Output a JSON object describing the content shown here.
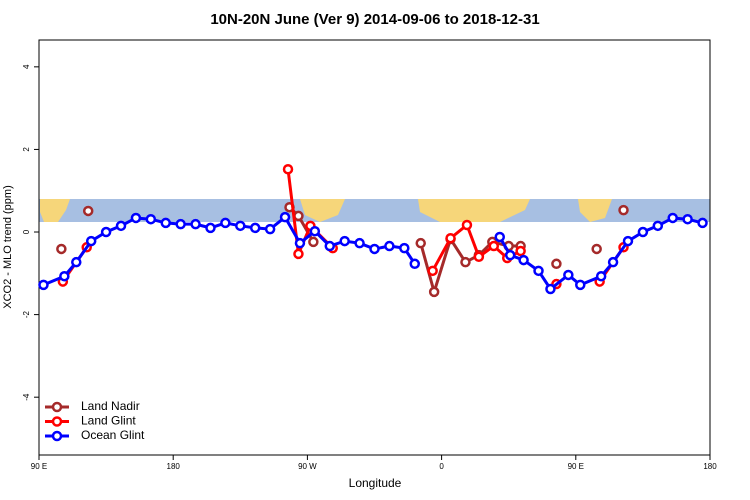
{
  "chart_data": {
    "type": "line",
    "title": "10N-20N June (Ver 9)   2014-09-06 to 2018-12-31",
    "xlabel": "Longitude",
    "ylabel": "XCO2 - MLO trend (ppm)",
    "xlim": [
      90,
      540
    ],
    "ylim": [
      -5.4,
      4.65
    ],
    "xticks": [
      {
        "value": 90,
        "label": "90 E"
      },
      180,
      {
        "value": 270,
        "label": "90 W"
      },
      {
        "value": 360,
        "label": "0"
      },
      {
        "value": 450,
        "label": "90 E"
      },
      {
        "value": 540,
        "label": "180"
      }
    ],
    "yticks": [
      -4,
      -2,
      0,
      2,
      4
    ],
    "legend": "bottom-left",
    "series": [
      {
        "name": "Land Nadir",
        "color": "#a52a2a",
        "x": [
          105,
          114,
          123,
          190,
          258,
          264,
          274,
          310,
          346,
          355,
          366,
          376,
          385,
          394,
          405,
          413,
          425,
          437,
          450,
          464,
          473,
          482
        ],
        "values": [
          -0.41,
          null,
          0.51,
          null,
          0.6,
          0.39,
          -0.24,
          null,
          -0.27,
          -1.45,
          -0.17,
          -0.73,
          -0.56,
          -0.24,
          -0.34,
          -0.34,
          null,
          -0.77,
          null,
          -0.41,
          null,
          0.53
        ]
      },
      {
        "name": "Land Glint",
        "color": "#ff0000",
        "x": [
          106,
          122,
          190,
          257,
          264,
          272,
          287,
          320,
          354,
          366,
          377,
          385,
          395,
          404,
          413,
          425,
          437,
          450,
          466,
          482
        ],
        "values": [
          -1.2,
          -0.37,
          null,
          1.52,
          -0.53,
          0.15,
          -0.39,
          null,
          -0.94,
          -0.15,
          0.17,
          -0.6,
          -0.34,
          -0.63,
          -0.46,
          null,
          -1.26,
          null,
          -1.2,
          -0.37
        ]
      },
      {
        "name": "Ocean Glint",
        "color": "#0000ff",
        "x": [
          93,
          107,
          115,
          125,
          135,
          145,
          155,
          165,
          175,
          185,
          195,
          205,
          215,
          225,
          235,
          245,
          255,
          265,
          275,
          285,
          295,
          305,
          315,
          325,
          335,
          342,
          370,
          399,
          406,
          415,
          425,
          433,
          445,
          453,
          467,
          475,
          485,
          495,
          505,
          515,
          525,
          535
        ],
        "values": [
          -1.28,
          -1.07,
          -0.73,
          -0.22,
          0.0,
          0.15,
          0.34,
          0.31,
          0.22,
          0.19,
          0.19,
          0.1,
          0.22,
          0.15,
          0.1,
          0.07,
          0.36,
          -0.27,
          0.02,
          -0.34,
          -0.22,
          -0.27,
          -0.41,
          -0.34,
          -0.39,
          -0.77,
          null,
          -0.12,
          -0.56,
          -0.68,
          -0.94,
          -1.38,
          -1.04,
          -1.28,
          -1.07,
          -0.73,
          -0.22,
          0.0,
          0.15,
          0.34,
          0.31,
          0.22
        ]
      }
    ]
  }
}
